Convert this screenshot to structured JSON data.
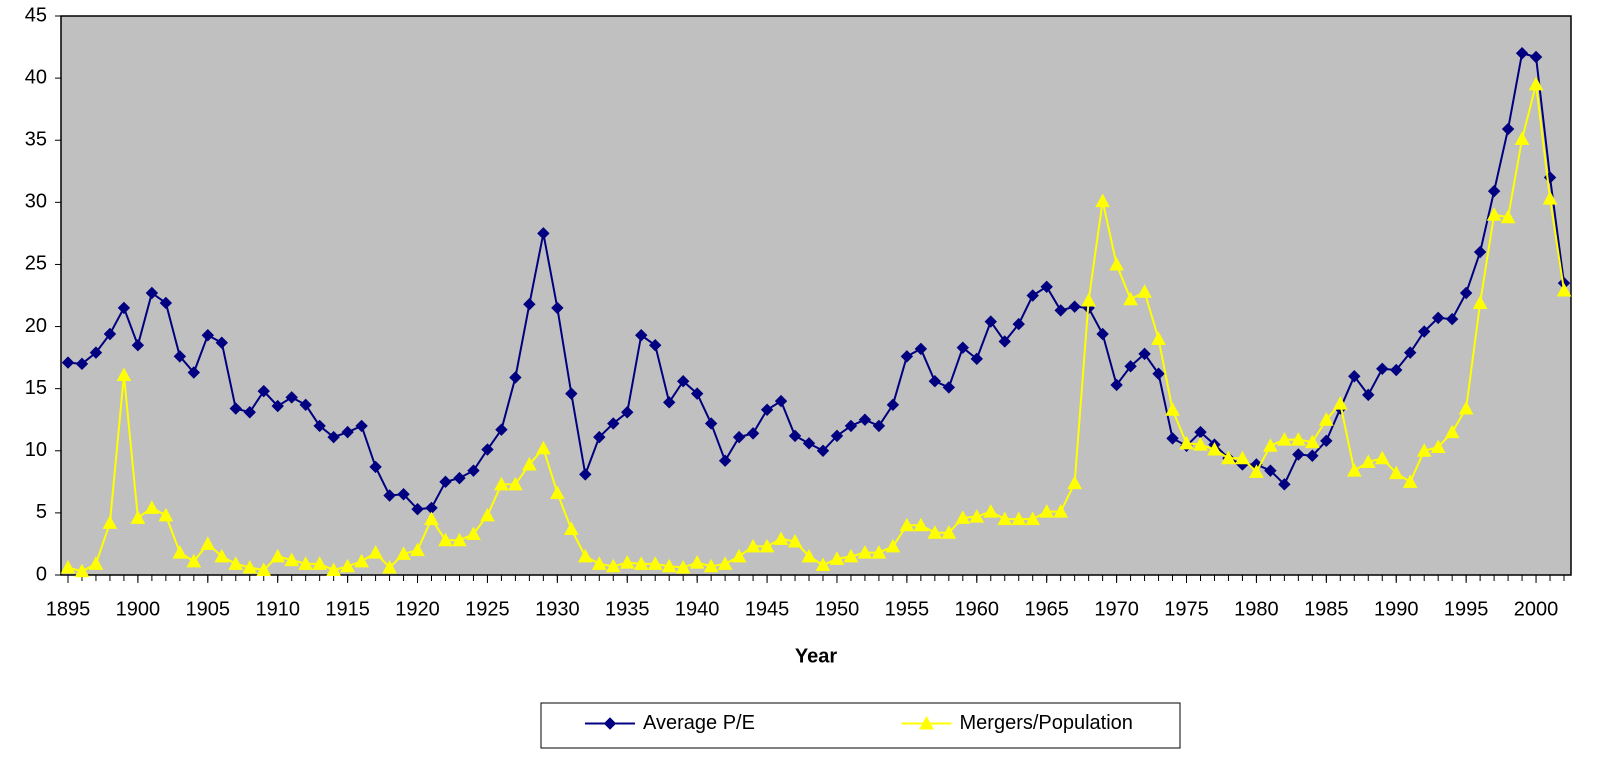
{
  "chart_data": {
    "type": "line",
    "xlabel": "Year",
    "x": [
      1895,
      1896,
      1897,
      1898,
      1899,
      1900,
      1901,
      1902,
      1903,
      1904,
      1905,
      1906,
      1907,
      1908,
      1909,
      1910,
      1911,
      1912,
      1913,
      1914,
      1915,
      1916,
      1917,
      1918,
      1919,
      1920,
      1921,
      1922,
      1923,
      1924,
      1925,
      1926,
      1927,
      1928,
      1929,
      1930,
      1931,
      1932,
      1933,
      1934,
      1935,
      1936,
      1937,
      1938,
      1939,
      1940,
      1941,
      1942,
      1943,
      1944,
      1945,
      1946,
      1947,
      1948,
      1949,
      1950,
      1951,
      1952,
      1953,
      1954,
      1955,
      1956,
      1957,
      1958,
      1959,
      1960,
      1961,
      1962,
      1963,
      1964,
      1965,
      1966,
      1967,
      1968,
      1969,
      1970,
      1971,
      1972,
      1973,
      1974,
      1975,
      1976,
      1977,
      1978,
      1979,
      1980,
      1981,
      1982,
      1983,
      1984,
      1985,
      1986,
      1987,
      1988,
      1989,
      1990,
      1991,
      1992,
      1993,
      1994,
      1995,
      1996,
      1997,
      1998,
      1999,
      2000,
      2001,
      2002
    ],
    "series": [
      {
        "name": "Average P/E",
        "color": "#000080",
        "marker": "diamond",
        "values": [
          17.1,
          17.0,
          17.9,
          19.4,
          21.5,
          18.5,
          22.7,
          21.9,
          17.6,
          16.3,
          19.3,
          18.7,
          13.4,
          13.1,
          14.8,
          13.6,
          14.3,
          13.7,
          12.0,
          11.1,
          11.5,
          12.0,
          8.7,
          6.4,
          6.5,
          5.3,
          5.4,
          7.5,
          7.8,
          8.4,
          10.1,
          11.7,
          15.9,
          21.8,
          27.5,
          21.5,
          14.6,
          8.1,
          11.1,
          12.2,
          13.1,
          19.3,
          18.5,
          13.9,
          15.6,
          14.6,
          12.2,
          9.2,
          11.1,
          11.4,
          13.3,
          14.0,
          11.2,
          10.6,
          10.0,
          11.2,
          12.0,
          12.5,
          12.0,
          13.7,
          17.6,
          18.2,
          15.6,
          15.1,
          18.3,
          17.4,
          20.4,
          18.8,
          20.2,
          22.5,
          23.2,
          21.3,
          21.6,
          21.5,
          19.4,
          15.3,
          16.8,
          17.8,
          16.2,
          11.0,
          10.4,
          11.5,
          10.5,
          9.4,
          8.9,
          8.9,
          8.4,
          7.3,
          9.7,
          9.6,
          10.8,
          13.4,
          16.0,
          14.5,
          16.6,
          16.5,
          17.9,
          19.6,
          20.7,
          20.6,
          22.7,
          26.0,
          30.9,
          35.9,
          42.0,
          41.7,
          32.0,
          23.5
        ]
      },
      {
        "name": "Mergers/Population",
        "color": "#ffff00",
        "marker": "triangle",
        "values": [
          0.6,
          0.3,
          0.9,
          4.2,
          16.1,
          4.6,
          5.4,
          4.8,
          1.8,
          1.1,
          2.5,
          1.5,
          0.9,
          0.6,
          0.4,
          1.5,
          1.2,
          0.9,
          0.9,
          0.4,
          0.7,
          1.1,
          1.8,
          0.6,
          1.7,
          2.0,
          4.5,
          2.8,
          2.8,
          3.3,
          4.8,
          7.3,
          7.3,
          8.9,
          10.2,
          6.6,
          3.7,
          1.5,
          0.9,
          0.7,
          1.0,
          0.9,
          0.9,
          0.7,
          0.6,
          1.0,
          0.7,
          0.9,
          1.5,
          2.3,
          2.3,
          2.9,
          2.7,
          1.5,
          0.8,
          1.3,
          1.5,
          1.8,
          1.8,
          2.3,
          4.0,
          4.0,
          3.4,
          3.4,
          4.6,
          4.7,
          5.1,
          4.5,
          4.5,
          4.5,
          5.1,
          5.1,
          7.4,
          22.1,
          30.1,
          25.0,
          22.2,
          22.8,
          19.0,
          13.3,
          10.6,
          10.5,
          10.1,
          9.4,
          9.4,
          8.3,
          10.4,
          10.9,
          10.9,
          10.7,
          12.5,
          13.8,
          8.4,
          9.1,
          9.4,
          8.2,
          7.5,
          10.0,
          10.3,
          11.5,
          13.4,
          21.9,
          29.0,
          28.8,
          35.1,
          39.5,
          30.3,
          22.9
        ]
      }
    ],
    "xlim": [
      1894.5,
      2002.5
    ],
    "xticks": [
      1895,
      1900,
      1905,
      1910,
      1915,
      1920,
      1925,
      1930,
      1935,
      1940,
      1945,
      1950,
      1955,
      1960,
      1965,
      1970,
      1975,
      1980,
      1985,
      1990,
      1995,
      2000
    ],
    "ylim": [
      0,
      45
    ],
    "yticks": [
      0,
      5,
      10,
      15,
      20,
      25,
      30,
      35,
      40,
      45
    ],
    "plot_background": "#c0c0c0",
    "legend": "bottom"
  }
}
